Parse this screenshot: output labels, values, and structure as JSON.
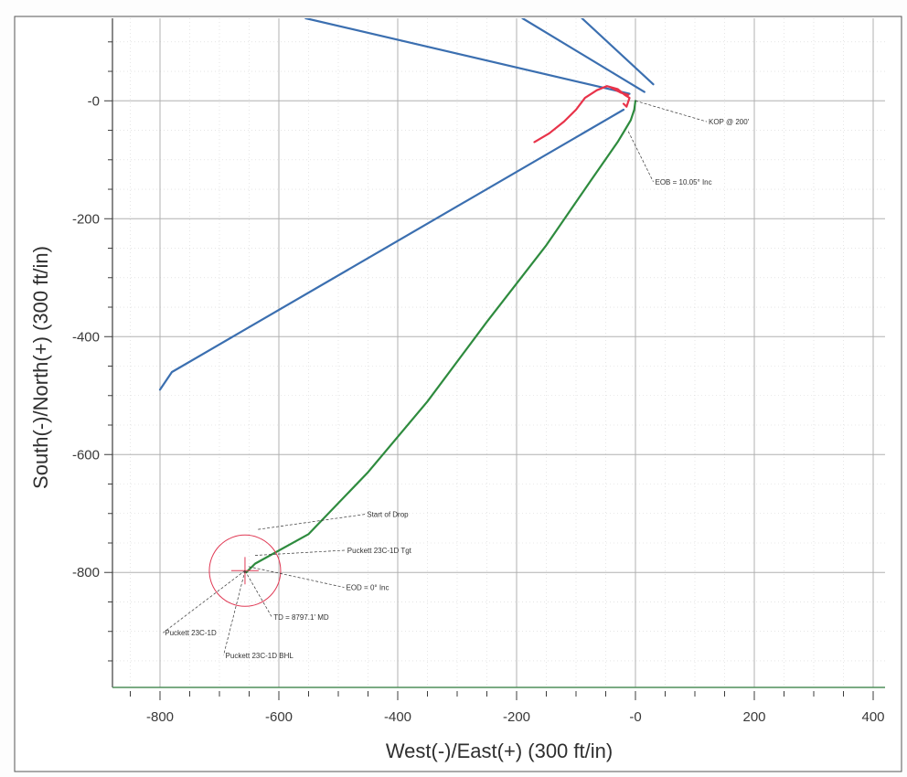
{
  "chart_data": {
    "type": "line",
    "xlabel": "West(-)/East(+) (300 ft/in)",
    "ylabel": "South(-)/North(+) (300 ft/in)",
    "xlim": [
      -880,
      420
    ],
    "ylim": [
      -995,
      140
    ],
    "x_ticks": [
      -800,
      -600,
      -400,
      -200,
      0,
      200,
      400
    ],
    "x_tick_labels": [
      "-800",
      "-600",
      "-400",
      "-200",
      "-0",
      "200",
      "400"
    ],
    "y_ticks": [
      0,
      -200,
      -400,
      -600,
      -800
    ],
    "y_tick_labels": [
      "-0",
      "-200",
      "-400",
      "-600",
      "-800"
    ],
    "grid": true,
    "series": [
      {
        "color": "#2e8b3e",
        "points": [
          [
            0,
            0
          ],
          [
            -2,
            -15
          ],
          [
            -8,
            -33
          ],
          [
            -18,
            -50
          ],
          [
            -30,
            -70
          ],
          [
            -75,
            -135
          ],
          [
            -150,
            -245
          ],
          [
            -250,
            -375
          ],
          [
            -350,
            -510
          ],
          [
            -450,
            -630
          ],
          [
            -550,
            -735
          ],
          [
            -640,
            -785
          ],
          [
            -655,
            -800
          ]
        ]
      },
      {
        "color": "#3b6fb0",
        "points": [
          [
            -20,
            -15
          ],
          [
            -780,
            -460
          ],
          [
            -800,
            -490
          ]
        ]
      },
      {
        "color": "#3b6fb0",
        "points": [
          [
            -10,
            12
          ],
          [
            -555,
            140
          ]
        ]
      },
      {
        "color": "#3b6fb0",
        "points": [
          [
            15,
            15
          ],
          [
            -190,
            140
          ]
        ]
      },
      {
        "color": "#3b6fb0",
        "points": [
          [
            30,
            28
          ],
          [
            -90,
            140
          ]
        ]
      },
      {
        "color": "#e8334a",
        "points": [
          [
            -170,
            -70
          ],
          [
            -145,
            -55
          ],
          [
            -120,
            -35
          ],
          [
            -100,
            -15
          ],
          [
            -85,
            5
          ],
          [
            -65,
            18
          ],
          [
            -48,
            25
          ],
          [
            -30,
            20
          ],
          [
            -18,
            10
          ],
          [
            -10,
            5
          ],
          [
            -15,
            -10
          ],
          [
            -20,
            -5
          ]
        ]
      },
      {
        "color": "#e8334a",
        "points": [
          [
            -40,
            22
          ],
          [
            -25,
            14
          ],
          [
            -12,
            10
          ]
        ]
      }
    ],
    "target_circle": {
      "center": [
        -657,
        -797
      ],
      "radius": 60,
      "color": "#e03a55"
    },
    "target_marker": {
      "center": [
        -657,
        -797
      ],
      "half_size": 23,
      "color": "#e03a55"
    },
    "annotations": [
      {
        "text": "KOP @ 200'",
        "anchor": [
          0,
          0
        ],
        "label_at": [
          120,
          -40
        ]
      },
      {
        "text": "EOB = 10.05° Inc",
        "anchor": [
          -12,
          -52
        ],
        "label_at": [
          30,
          -142
        ]
      },
      {
        "text": "Start of Drop",
        "anchor": [
          -635,
          -727
        ],
        "label_at": [
          -455,
          -706
        ]
      },
      {
        "text": "Puckett 23C-1D Tgt",
        "anchor": [
          -640,
          -771
        ],
        "label_at": [
          -488,
          -767
        ]
      },
      {
        "text": "EOD = 0° Inc",
        "anchor": [
          -651,
          -790
        ],
        "label_at": [
          -490,
          -830
        ]
      },
      {
        "text": "TD = 8797.1' MD",
        "anchor": [
          -657,
          -797
        ],
        "label_at": [
          -612,
          -880
        ]
      },
      {
        "text": "Puckett 23C-1D",
        "anchor": [
          -657,
          -797
        ],
        "label_at": [
          -795,
          -907
        ]
      },
      {
        "text": "Puckett 23C-1D BHL",
        "anchor": [
          -657,
          -797
        ],
        "label_at": [
          -693,
          -945
        ]
      }
    ],
    "axis_colors": {
      "grid": "#b0b0b0",
      "minor_grid": "#d6d6d6",
      "axis": "#3c3c3c",
      "bottom_axis": "#4e8f5a",
      "frame": "#555555"
    }
  }
}
